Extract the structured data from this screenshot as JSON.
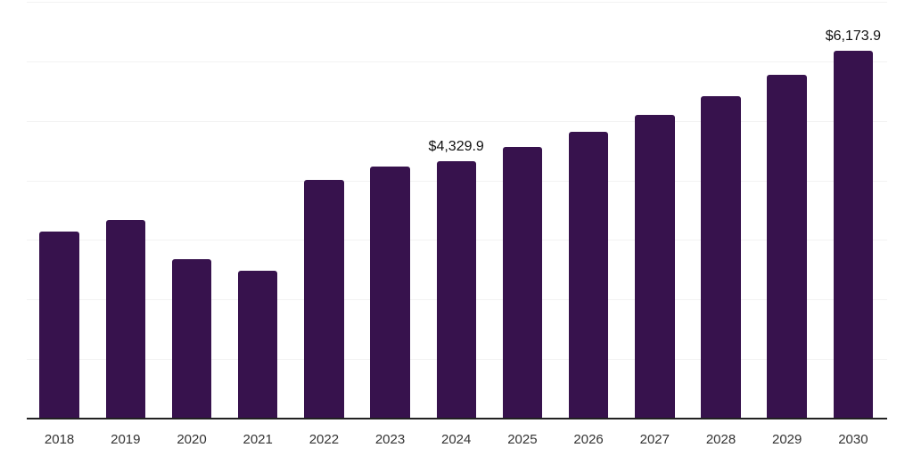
{
  "chart_data": {
    "type": "bar",
    "title": "",
    "xlabel": "",
    "ylabel": "",
    "categories": [
      "2018",
      "2019",
      "2020",
      "2021",
      "2022",
      "2023",
      "2024",
      "2025",
      "2026",
      "2027",
      "2028",
      "2029",
      "2030"
    ],
    "values": [
      3140,
      3330,
      2675,
      2490,
      4010,
      4230,
      4329.9,
      4560,
      4820,
      5100,
      5420,
      5780,
      6173.9
    ],
    "value_labels": [
      "",
      "",
      "",
      "",
      "",
      "",
      "$4,329.9",
      "",
      "",
      "",
      "",
      "",
      "$6,173.9"
    ],
    "ylim": [
      0,
      7000
    ],
    "gridline_step": 1000,
    "grid_visible": true,
    "legend_position": "none",
    "colors": {
      "bar": "#37124d",
      "gridline": "#f2f2f2",
      "axis": "#222222",
      "tick_text": "#333333",
      "value_label_text": "#111111",
      "background": "#ffffff"
    }
  }
}
